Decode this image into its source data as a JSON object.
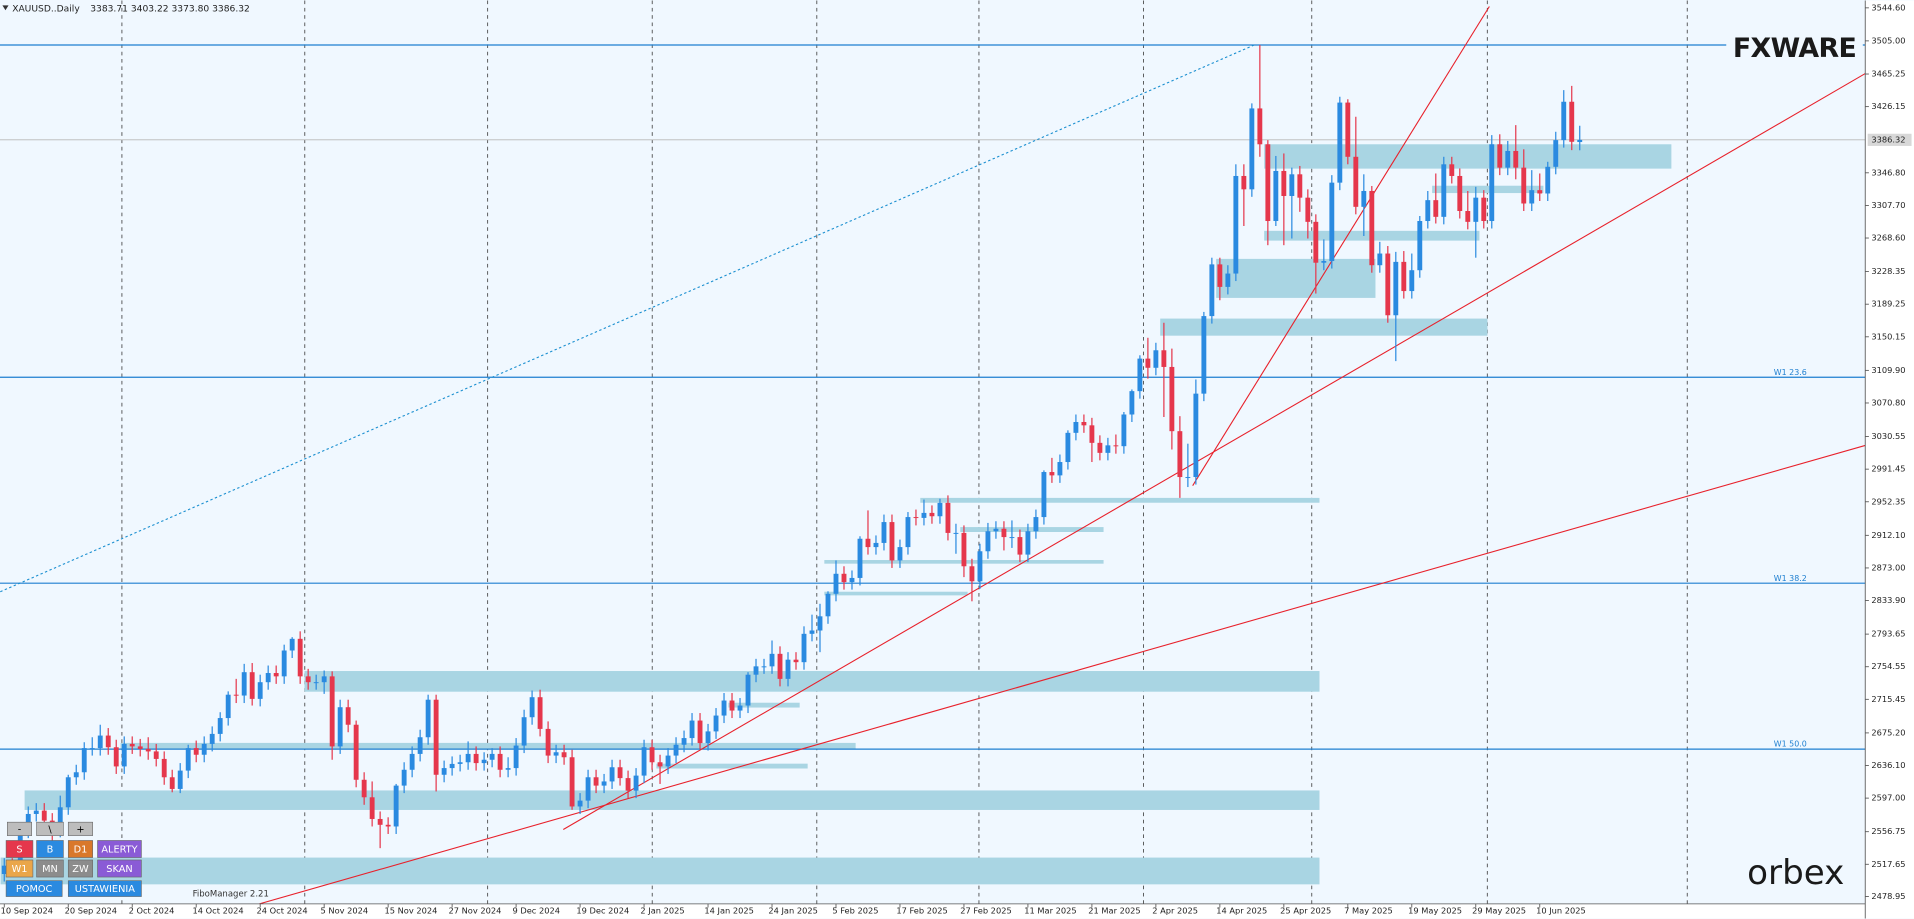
{
  "chart_data": {
    "type": "candlestick",
    "title": "XAUUSD..Daily",
    "subtitle": "3383.71 3403.22 3373.80 3386.32",
    "up_color": "#2a8ae0",
    "down_color": "#e5374c",
    "zone_color": "#a9d5e3",
    "level_color": "#1e7fd0",
    "last_price_color": "#b8b8b8",
    "categories": [
      "10 Sep 2024",
      null,
      null,
      null,
      null,
      null,
      null,
      null,
      "20 Sep 2024",
      null,
      null,
      null,
      null,
      null,
      null,
      null,
      "2 Oct 2024",
      null,
      null,
      null,
      null,
      null,
      null,
      null,
      "14 Oct 2024",
      null,
      null,
      null,
      null,
      null,
      null,
      null,
      "24 Oct 2024",
      null,
      null,
      null,
      null,
      null,
      null,
      null,
      "5 Nov 2024",
      null,
      null,
      null,
      null,
      null,
      null,
      null,
      "15 Nov 2024",
      null,
      null,
      null,
      null,
      null,
      null,
      null,
      "27 Nov 2024",
      null,
      null,
      null,
      null,
      null,
      null,
      null,
      "9 Dec 2024",
      null,
      null,
      null,
      null,
      null,
      null,
      null,
      "19 Dec 2024",
      null,
      null,
      null,
      null,
      null,
      null,
      null,
      "2 Jan 2025",
      null,
      null,
      null,
      null,
      null,
      null,
      null,
      "14 Jan 2025",
      null,
      null,
      null,
      null,
      null,
      null,
      null,
      "24 Jan 2025",
      null,
      null,
      null,
      null,
      null,
      null,
      null,
      "5 Feb 2025",
      null,
      null,
      null,
      null,
      null,
      null,
      null,
      "17 Feb 2025",
      null,
      null,
      null,
      null,
      null,
      null,
      null,
      "27 Feb 2025",
      null,
      null,
      null,
      null,
      null,
      null,
      null,
      "11 Mar 2025",
      null,
      null,
      null,
      null,
      null,
      null,
      null,
      "21 Mar 2025",
      null,
      null,
      null,
      null,
      null,
      null,
      null,
      "2 Apr 2025",
      null,
      null,
      null,
      null,
      null,
      null,
      null,
      "14 Apr 2025",
      null,
      null,
      null,
      null,
      null,
      null,
      null,
      "25 Apr 2025",
      null,
      null,
      null,
      null,
      null,
      null,
      null,
      "7 May 2025",
      null,
      null,
      null,
      null,
      null,
      null,
      null,
      "19 May 2025",
      null,
      null,
      null,
      null,
      null,
      null,
      null,
      "29 May 2025",
      null,
      null,
      null,
      null,
      null,
      null,
      null,
      "10 Jun 2025",
      null,
      null,
      null,
      null,
      null
    ],
    "open": [
      2506,
      2516,
      2512,
      2558,
      2578,
      2582,
      2570,
      2559,
      2586,
      2622,
      2628,
      2657,
      2657,
      2672,
      2658,
      2635,
      2662,
      2659,
      2656,
      2653,
      2644,
      2622,
      2608,
      2630,
      2657,
      2649,
      2662,
      2674,
      2693,
      2721,
      2720,
      2748,
      2716,
      2736,
      2747,
      2743,
      2774,
      2788,
      2743,
      2736,
      2736,
      2743,
      2659,
      2706,
      2685,
      2619,
      2598,
      2572,
      2565,
      2563,
      2612,
      2631,
      2650,
      2670,
      2715,
      2625,
      2633,
      2638,
      2640,
      2650,
      2639,
      2643,
      2650,
      2631,
      2633,
      2660,
      2694,
      2718,
      2680,
      2648,
      2652,
      2646,
      2587,
      2594,
      2622,
      2612,
      2617,
      2634,
      2621,
      2606,
      2624,
      2658,
      2640,
      2635,
      2648,
      2661,
      2669,
      2690,
      2663,
      2677,
      2696,
      2714,
      2702,
      2708,
      2745,
      2755,
      2755,
      2770,
      2740,
      2763,
      2760,
      2794,
      2798,
      2815,
      2842,
      2866,
      2856,
      2861,
      2908,
      2898,
      2903,
      2928,
      2882,
      2898,
      2934,
      2933,
      2939,
      2935,
      2951,
      2915,
      2915,
      2875,
      2857,
      2893,
      2917,
      2920,
      2910,
      2910,
      2889,
      2917,
      2934,
      2988,
      2984,
      3000,
      3035,
      3048,
      3044,
      3023,
      3011,
      3020,
      3019,
      3057,
      3085,
      3124,
      3113,
      3134,
      3114,
      3037,
      2982,
      2982,
      3082,
      3175,
      3237,
      3210,
      3226,
      3343,
      3327,
      3424,
      3381,
      3289,
      3349,
      3319,
      3345,
      3317,
      3288,
      3239,
      3241,
      3335,
      3431,
      3366,
      3306,
      3325,
      3236,
      3250,
      3176,
      3240,
      3205,
      3230,
      3289,
      3314,
      3294,
      3357,
      3343,
      3301,
      3288,
      3317,
      3289,
      3381,
      3353,
      3373,
      3353,
      3310,
      3326,
      3322,
      3354,
      3386,
      3432,
      3383.71
    ],
    "high": [
      2525,
      2525,
      2567,
      2587,
      2591,
      2591,
      2579,
      2600,
      2625,
      2637,
      2664,
      2670,
      2685,
      2681,
      2667,
      2671,
      2671,
      2668,
      2670,
      2662,
      2653,
      2631,
      2639,
      2661,
      2666,
      2671,
      2683,
      2700,
      2725,
      2740,
      2758,
      2759,
      2745,
      2756,
      2756,
      2781,
      2790,
      2797,
      2752,
      2745,
      2750,
      2749,
      2715,
      2715,
      2690,
      2628,
      2617,
      2581,
      2574,
      2614,
      2640,
      2659,
      2679,
      2721,
      2721,
      2642,
      2647,
      2649,
      2665,
      2659,
      2652,
      2657,
      2659,
      2646,
      2669,
      2703,
      2726,
      2727,
      2689,
      2661,
      2661,
      2655,
      2603,
      2631,
      2631,
      2626,
      2643,
      2643,
      2630,
      2633,
      2667,
      2667,
      2649,
      2657,
      2670,
      2678,
      2699,
      2699,
      2686,
      2705,
      2723,
      2723,
      2717,
      2748,
      2764,
      2764,
      2786,
      2779,
      2772,
      2772,
      2803,
      2817,
      2830,
      2845,
      2882,
      2875,
      2870,
      2911,
      2942,
      2912,
      2937,
      2937,
      2907,
      2940,
      2943,
      2955,
      2948,
      2956,
      2960,
      2926,
      2924,
      2884,
      2902,
      2927,
      2929,
      2929,
      2930,
      2919,
      2926,
      2943,
      2990,
      3005,
      3009,
      3038,
      3057,
      3057,
      3053,
      3032,
      3029,
      3033,
      3060,
      3087,
      3128,
      3149,
      3143,
      3167,
      3136,
      3055,
      3022,
      3099,
      3180,
      3245,
      3245,
      3236,
      3357,
      3357,
      3430,
      3500,
      3386,
      3367,
      3370,
      3353,
      3355,
      3327,
      3297,
      3267,
      3344,
      3438,
      3435,
      3414,
      3345,
      3331,
      3264,
      3259,
      3252,
      3253,
      3250,
      3295,
      3325,
      3346,
      3366,
      3366,
      3352,
      3325,
      3330,
      3326,
      3392,
      3393,
      3385,
      3404,
      3375,
      3350,
      3346,
      3360,
      3396,
      3446,
      3451,
      3403.22
    ],
    "low": [
      2497,
      2503,
      2503,
      2549,
      2569,
      2561,
      2546,
      2550,
      2577,
      2613,
      2619,
      2648,
      2648,
      2649,
      2626,
      2626,
      2650,
      2647,
      2643,
      2635,
      2613,
      2604,
      2603,
      2621,
      2640,
      2640,
      2653,
      2665,
      2684,
      2711,
      2711,
      2708,
      2707,
      2727,
      2734,
      2734,
      2765,
      2734,
      2727,
      2727,
      2722,
      2643,
      2650,
      2676,
      2610,
      2589,
      2563,
      2537,
      2554,
      2554,
      2603,
      2622,
      2641,
      2661,
      2605,
      2616,
      2624,
      2629,
      2631,
      2630,
      2630,
      2634,
      2622,
      2622,
      2624,
      2651,
      2685,
      2671,
      2639,
      2639,
      2637,
      2583,
      2578,
      2585,
      2603,
      2603,
      2608,
      2612,
      2597,
      2597,
      2615,
      2631,
      2614,
      2626,
      2639,
      2652,
      2660,
      2656,
      2654,
      2668,
      2687,
      2693,
      2693,
      2699,
      2736,
      2746,
      2746,
      2731,
      2731,
      2751,
      2751,
      2785,
      2772,
      2806,
      2833,
      2847,
      2847,
      2852,
      2889,
      2889,
      2894,
      2873,
      2873,
      2889,
      2924,
      2924,
      2926,
      2926,
      2906,
      2890,
      2862,
      2833,
      2848,
      2884,
      2908,
      2894,
      2897,
      2880,
      2880,
      2908,
      2925,
      2975,
      2975,
      2991,
      3026,
      3035,
      3000,
      3002,
      3002,
      3010,
      3010,
      3048,
      3076,
      3100,
      3104,
      3054,
      3015,
      2957,
      2970,
      2973,
      3073,
      3166,
      3194,
      3201,
      3217,
      3283,
      3318,
      3366,
      3260,
      3283,
      3260,
      3268,
      3300,
      3268,
      3202,
      3230,
      3232,
      3326,
      3357,
      3297,
      3271,
      3227,
      3227,
      3167,
      3121,
      3196,
      3196,
      3221,
      3280,
      3286,
      3285,
      3334,
      3292,
      3279,
      3245,
      3280,
      3280,
      3344,
      3344,
      3339,
      3301,
      3301,
      3313,
      3313,
      3345,
      3377,
      3374,
      3373.8
    ],
    "close": [
      2516,
      2512,
      2558,
      2578,
      2582,
      2570,
      2559,
      2586,
      2622,
      2628,
      2657,
      2657,
      2672,
      2658,
      2635,
      2662,
      2659,
      2656,
      2653,
      2644,
      2622,
      2608,
      2630,
      2657,
      2649,
      2662,
      2674,
      2693,
      2721,
      2720,
      2748,
      2716,
      2736,
      2747,
      2743,
      2774,
      2788,
      2743,
      2736,
      2736,
      2743,
      2659,
      2706,
      2685,
      2619,
      2598,
      2572,
      2565,
      2563,
      2612,
      2631,
      2650,
      2670,
      2715,
      2625,
      2633,
      2638,
      2640,
      2650,
      2639,
      2643,
      2650,
      2631,
      2633,
      2660,
      2694,
      2718,
      2680,
      2648,
      2652,
      2646,
      2587,
      2594,
      2622,
      2612,
      2617,
      2634,
      2621,
      2606,
      2624,
      2658,
      2640,
      2635,
      2648,
      2661,
      2669,
      2690,
      2663,
      2677,
      2696,
      2714,
      2702,
      2708,
      2745,
      2755,
      2755,
      2770,
      2740,
      2763,
      2760,
      2794,
      2798,
      2815,
      2842,
      2866,
      2856,
      2861,
      2908,
      2898,
      2903,
      2928,
      2882,
      2898,
      2934,
      2933,
      2939,
      2935,
      2951,
      2915,
      2915,
      2875,
      2857,
      2893,
      2917,
      2920,
      2910,
      2910,
      2889,
      2917,
      2934,
      2988,
      2984,
      3000,
      3035,
      3048,
      3044,
      3023,
      3011,
      3020,
      3019,
      3057,
      3085,
      3124,
      3113,
      3134,
      3114,
      3037,
      2982,
      2982,
      3082,
      3175,
      3237,
      3210,
      3226,
      3343,
      3327,
      3424,
      3381,
      3289,
      3349,
      3319,
      3345,
      3317,
      3288,
      3239,
      3241,
      3335,
      3431,
      3366,
      3306,
      3325,
      3236,
      3250,
      3176,
      3240,
      3205,
      3230,
      3289,
      3314,
      3294,
      3357,
      3343,
      3301,
      3288,
      3317,
      3289,
      3381,
      3353,
      3373,
      3353,
      3310,
      3326,
      3322,
      3354,
      3386,
      3432,
      3384,
      3386.32
    ],
    "ylim": [
      2470.2,
      3553.4
    ],
    "yticks": [
      {
        "value": 3544.6,
        "label": "3544.60"
      },
      {
        "value": 3505,
        "label": "3505.00"
      },
      3465.25,
      3426.15,
      {
        "value": 3346.8,
        "label": "3346.80"
      },
      {
        "value": 3307.7,
        "label": "3307.70"
      },
      {
        "value": 3268.6,
        "label": "3268.60"
      },
      3228.35,
      3189.25,
      3150.15,
      {
        "value": 3109.9,
        "label": "3109.90"
      },
      {
        "value": 3070.8,
        "label": "3070.80"
      },
      3030.55,
      2991.45,
      2952.35,
      {
        "value": 2912.1,
        "label": "2912.10"
      },
      {
        "value": 2873,
        "label": "2873.00"
      },
      {
        "value": 2833.9,
        "label": "2833.90"
      },
      2793.65,
      2754.55,
      2715.45,
      {
        "value": 2675.2,
        "label": "2675.20"
      },
      {
        "value": 2636.1,
        "label": "2636.10"
      },
      {
        "value": 2597,
        "label": "2597.00"
      },
      2556.75,
      2517.65,
      2478.95
    ],
    "levels": [
      {
        "value": 3500
      },
      {
        "value": 3101.7,
        "label": "W1 23.6"
      },
      {
        "value": 2854.7,
        "label": "W1 38.2"
      },
      {
        "value": 2655.8,
        "label": "W1 50.0"
      }
    ],
    "zones": [
      [
        158,
        208,
        3351.8,
        3381
      ],
      [
        152,
        171,
        3196.8,
        3243.6
      ],
      [
        145,
        185,
        3151.5,
        3172
      ],
      [
        158,
        184,
        3265.5,
        3277.2
      ],
      [
        115,
        164,
        2951.2,
        2957
      ],
      [
        38,
        164,
        2724.6,
        2749.4
      ],
      [
        3,
        164,
        2582.8,
        2606.2
      ],
      [
        0,
        164,
        2493.6,
        2525.7
      ],
      [
        15,
        106,
        2655.9,
        2663.2
      ],
      [
        82,
        100,
        2632.5,
        2638.3
      ],
      [
        91,
        99,
        2705.6,
        2711.4
      ],
      [
        103,
        137,
        2878.1,
        2882.5
      ],
      [
        103,
        120,
        2840.1,
        2844.5
      ],
      [
        120,
        137,
        2916.1,
        2922
      ],
      [
        179,
        192,
        3322.5,
        3331.3
      ]
    ],
    "trendlines": [
      {
        "color": "#e8212b",
        "style": "solid",
        "x": [
          69.9,
          232.7
        ],
        "y": [
          2559.4,
          3465.8
        ]
      },
      {
        "color": "#e8212b",
        "style": "solid",
        "x": [
          31.9,
          232.7
        ],
        "y": [
          2470.2,
          3019.9
        ]
      },
      {
        "color": "#e8212b",
        "style": "solid",
        "x": [
          148.6,
          185.7
        ],
        "y": [
          2971.6,
          3546.2
        ]
      },
      {
        "color": "#1a8fd0",
        "style": "dotted",
        "x": [
          -0.5,
          156.5
        ],
        "y": [
          2844.5,
          3500.9
        ]
      }
    ]
  },
  "toolbar": {
    "row1": [
      "-",
      "\\",
      "+"
    ],
    "row2": [
      "S",
      "B",
      "D1",
      "ALERTY"
    ],
    "row3": [
      "W1",
      "MN",
      "ZW",
      "SKAN"
    ],
    "row4": [
      "POMOC",
      "USTAWIENIA"
    ],
    "indicator": "FiboManager 2.21"
  },
  "logos": {
    "fxware": "FXWARE",
    "orbex": "orbex"
  }
}
